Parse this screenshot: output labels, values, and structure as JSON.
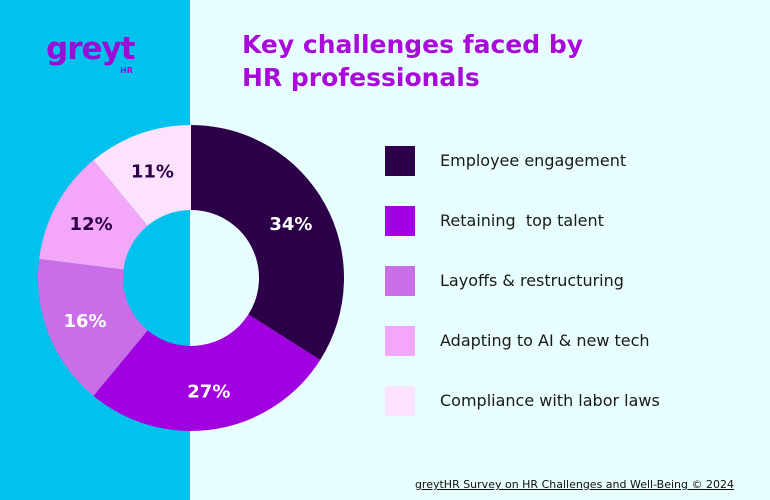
{
  "logo": {
    "word": "greyt",
    "sub": "HR"
  },
  "title_lines": [
    "Key challenges faced by",
    "HR professionals"
  ],
  "chart_data": {
    "type": "pie",
    "donut": true,
    "categories": [
      "Employee engagement",
      "Retaining  top talent",
      "Layoffs & restructuring",
      "Adapting to AI & new tech",
      "Compliance with labor laws"
    ],
    "values": [
      34,
      27,
      16,
      12,
      11
    ],
    "labels": [
      "34%",
      "27%",
      "16%",
      "12%",
      "11%"
    ],
    "colors": [
      "#2c0048",
      "#a100e0",
      "#c96ee6",
      "#f4a6f8",
      "#fde2fd"
    ],
    "label_colors": [
      "#ffffff",
      "#ffffff",
      "#ffffff",
      "#2c0048",
      "#2c0048"
    ],
    "legend_position": "right"
  },
  "footer": "greytHR Survey on HR Challenges and Well-Being © 2024"
}
